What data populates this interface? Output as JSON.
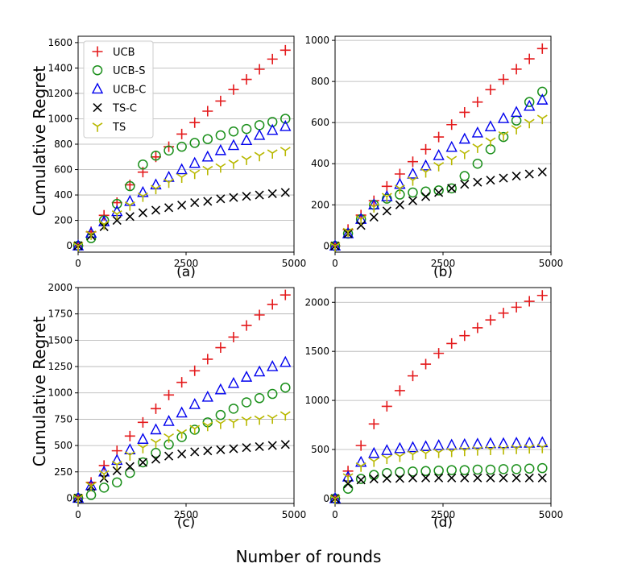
{
  "figure": {
    "xlabel": "Number of rounds"
  },
  "legend": {
    "entries": [
      {
        "name": "UCB",
        "color": "#e41a1c",
        "marker": "plus"
      },
      {
        "name": "UCB-S",
        "color": "#1a8f1a",
        "marker": "circle"
      },
      {
        "name": "UCB-C",
        "color": "#0000ee",
        "marker": "triangle"
      },
      {
        "name": "TS-C",
        "color": "#000000",
        "marker": "x"
      },
      {
        "name": "TS",
        "color": "#b8b800",
        "marker": "tri_down"
      }
    ]
  },
  "chart_data": [
    {
      "type": "scatter",
      "panel_label": "(a)",
      "ylabel": "Cumulative Regret",
      "xlim": [
        0,
        5000
      ],
      "ylim": [
        -50,
        1650
      ],
      "xticks": [
        0,
        2500,
        5000
      ],
      "yticks": [
        0,
        200,
        400,
        600,
        800,
        1000,
        1200,
        1400,
        1600
      ],
      "grid": "horizontal",
      "legend_position": "upper-left",
      "x": [
        0,
        300,
        600,
        900,
        1200,
        1500,
        1800,
        2100,
        2400,
        2700,
        3000,
        3300,
        3600,
        3900,
        4200,
        4500,
        4800
      ],
      "series": [
        {
          "name": "UCB",
          "values": [
            0,
            110,
            240,
            340,
            480,
            580,
            700,
            780,
            880,
            970,
            1060,
            1140,
            1230,
            1310,
            1390,
            1470,
            1540
          ]
        },
        {
          "name": "UCB-S",
          "values": [
            0,
            60,
            200,
            330,
            470,
            640,
            710,
            750,
            780,
            810,
            840,
            870,
            900,
            920,
            950,
            975,
            1000
          ]
        },
        {
          "name": "UCB-C",
          "values": [
            0,
            100,
            190,
            270,
            350,
            420,
            480,
            540,
            600,
            650,
            700,
            750,
            790,
            830,
            870,
            910,
            940
          ]
        },
        {
          "name": "TS-C",
          "values": [
            0,
            80,
            150,
            200,
            230,
            260,
            280,
            300,
            320,
            340,
            350,
            370,
            380,
            390,
            400,
            410,
            420
          ]
        },
        {
          "name": "TS",
          "values": [
            0,
            90,
            170,
            250,
            320,
            390,
            450,
            500,
            540,
            570,
            600,
            620,
            650,
            680,
            710,
            730,
            750
          ]
        }
      ]
    },
    {
      "type": "scatter",
      "panel_label": "(b)",
      "xlim": [
        0,
        5000
      ],
      "ylim": [
        -30,
        1020
      ],
      "xticks": [
        0,
        2500,
        5000
      ],
      "yticks": [
        0,
        200,
        400,
        600,
        800,
        1000
      ],
      "grid": "horizontal",
      "x": [
        0,
        300,
        600,
        900,
        1200,
        1500,
        1800,
        2100,
        2400,
        2700,
        3000,
        3300,
        3600,
        3900,
        4200,
        4500,
        4800
      ],
      "series": [
        {
          "name": "UCB",
          "values": [
            0,
            80,
            150,
            220,
            290,
            350,
            410,
            470,
            530,
            590,
            650,
            700,
            760,
            810,
            860,
            910,
            960
          ]
        },
        {
          "name": "UCB-S",
          "values": [
            0,
            60,
            130,
            200,
            230,
            250,
            260,
            265,
            270,
            280,
            340,
            400,
            470,
            530,
            610,
            700,
            750
          ]
        },
        {
          "name": "UCB-C",
          "values": [
            0,
            60,
            130,
            200,
            240,
            300,
            350,
            390,
            440,
            480,
            520,
            550,
            580,
            620,
            650,
            680,
            710
          ]
        },
        {
          "name": "TS-C",
          "values": [
            0,
            60,
            100,
            140,
            170,
            200,
            220,
            240,
            260,
            280,
            300,
            310,
            320,
            330,
            340,
            350,
            360
          ]
        },
        {
          "name": "TS",
          "values": [
            0,
            70,
            130,
            190,
            240,
            280,
            320,
            360,
            390,
            420,
            450,
            480,
            510,
            540,
            570,
            600,
            620
          ]
        }
      ]
    },
    {
      "type": "scatter",
      "panel_label": "(c)",
      "ylabel": "Cumulative Regret",
      "xlim": [
        0,
        5000
      ],
      "ylim": [
        -50,
        2000
      ],
      "xticks": [
        0,
        2500,
        5000
      ],
      "yticks": [
        0,
        250,
        500,
        750,
        1000,
        1250,
        1500,
        1750,
        2000
      ],
      "grid": "horizontal",
      "x": [
        0,
        300,
        600,
        900,
        1200,
        1500,
        1800,
        2100,
        2400,
        2700,
        3000,
        3300,
        3600,
        3900,
        4200,
        4500,
        4800
      ],
      "series": [
        {
          "name": "UCB",
          "values": [
            0,
            150,
            310,
            450,
            590,
            720,
            850,
            980,
            1100,
            1210,
            1320,
            1430,
            1530,
            1640,
            1740,
            1840,
            1930
          ]
        },
        {
          "name": "UCB-S",
          "values": [
            0,
            30,
            100,
            150,
            240,
            340,
            430,
            510,
            580,
            650,
            720,
            790,
            850,
            910,
            950,
            990,
            1050
          ]
        },
        {
          "name": "UCB-C",
          "values": [
            0,
            120,
            250,
            360,
            460,
            560,
            650,
            730,
            810,
            890,
            960,
            1030,
            1090,
            1150,
            1200,
            1250,
            1290
          ]
        },
        {
          "name": "TS-C",
          "values": [
            0,
            110,
            190,
            260,
            300,
            340,
            370,
            400,
            420,
            440,
            450,
            460,
            470,
            480,
            490,
            500,
            510
          ]
        },
        {
          "name": "TS",
          "values": [
            0,
            120,
            230,
            320,
            410,
            480,
            530,
            580,
            620,
            660,
            690,
            710,
            720,
            740,
            750,
            760,
            790
          ]
        }
      ]
    },
    {
      "type": "scatter",
      "panel_label": "(d)",
      "xlim": [
        0,
        5000
      ],
      "ylim": [
        -50,
        2150
      ],
      "xticks": [
        0,
        2500,
        5000
      ],
      "yticks": [
        0,
        500,
        1000,
        1500,
        2000
      ],
      "grid": "horizontal",
      "x": [
        0,
        300,
        600,
        900,
        1200,
        1500,
        1800,
        2100,
        2400,
        2700,
        3000,
        3300,
        3600,
        3900,
        4200,
        4500,
        4800
      ],
      "series": [
        {
          "name": "UCB",
          "values": [
            0,
            280,
            540,
            760,
            940,
            1100,
            1250,
            1370,
            1480,
            1580,
            1660,
            1740,
            1820,
            1890,
            1950,
            2010,
            2070
          ]
        },
        {
          "name": "UCB-S",
          "values": [
            0,
            100,
            200,
            240,
            260,
            270,
            275,
            280,
            285,
            290,
            290,
            295,
            295,
            300,
            300,
            305,
            310
          ]
        },
        {
          "name": "UCB-C",
          "values": [
            0,
            220,
            370,
            460,
            490,
            510,
            520,
            530,
            540,
            545,
            550,
            555,
            560,
            560,
            565,
            565,
            570
          ]
        },
        {
          "name": "TS-C",
          "values": [
            0,
            150,
            190,
            200,
            205,
            205,
            210,
            210,
            210,
            210,
            210,
            210,
            210,
            210,
            210,
            210,
            210
          ]
        },
        {
          "name": "TS",
          "values": [
            0,
            220,
            330,
            380,
            410,
            430,
            450,
            460,
            470,
            480,
            490,
            495,
            500,
            505,
            510,
            515,
            520
          ]
        }
      ]
    }
  ]
}
